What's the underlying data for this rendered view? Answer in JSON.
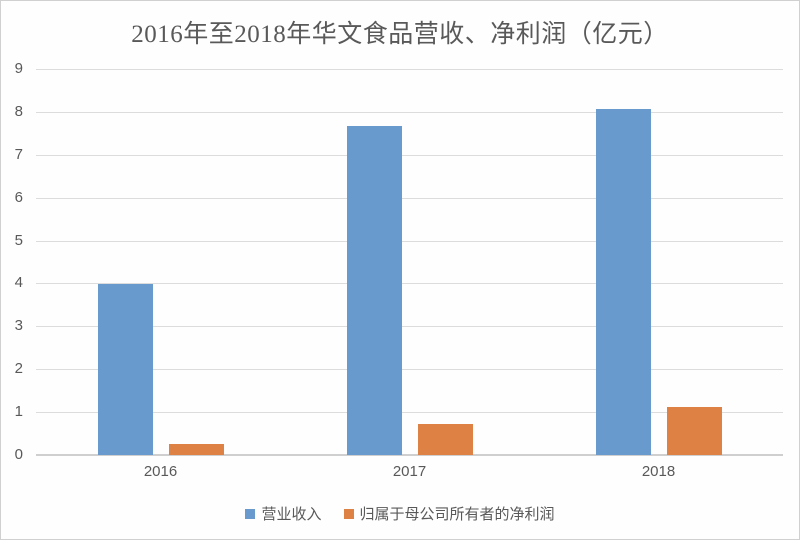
{
  "title": "2016年至2018年华文食品营收、净利润（亿元）",
  "chart_data": {
    "type": "bar",
    "title": "2016年至2018年华文食品营收、净利润（亿元）",
    "categories": [
      "2016",
      "2017",
      "2018"
    ],
    "series": [
      {
        "key": "revenue",
        "name": "营业收入",
        "color": "#699ACD",
        "values": [
          3.99,
          7.67,
          8.06
        ]
      },
      {
        "key": "net-profit",
        "name": "归属于母公司所有者的净利润",
        "color": "#DD8244",
        "values": [
          0.25,
          0.73,
          1.12
        ]
      }
    ],
    "xlabel": "",
    "ylabel": "",
    "ylim": [
      0,
      9
    ],
    "yticks": [
      0,
      1,
      2,
      3,
      4,
      5,
      6,
      7,
      8,
      9
    ],
    "grid": true,
    "legend_position": "bottom"
  },
  "colors": {
    "axis_text": "#595959",
    "title_text": "#595959",
    "gridline": "#dcdcdc",
    "axis_line": "#cfcfcf",
    "frame_border": "#d0d0d0",
    "background": "#fefefe"
  }
}
